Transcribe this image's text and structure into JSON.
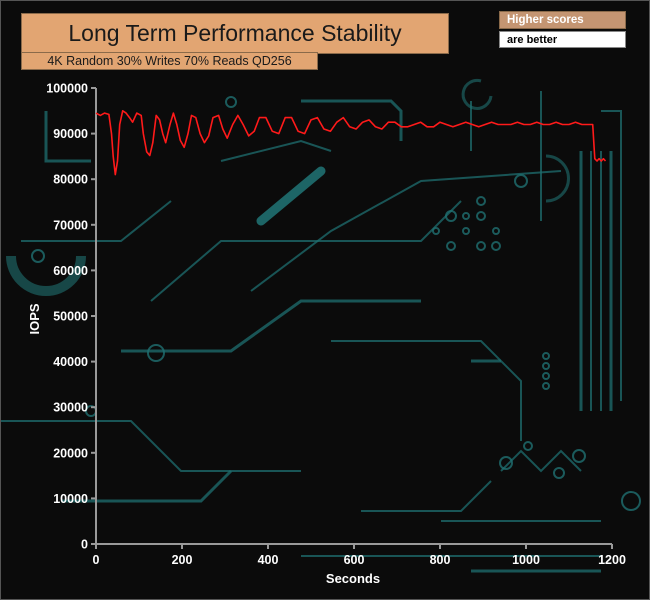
{
  "header": {
    "title": "Long Term Performance Stability",
    "subtitle": "4K Random 30% Writes 70% Reads QD256",
    "note_top": "Higher scores",
    "note_bottom": "are better"
  },
  "colors": {
    "background": "#0b0b0b",
    "series": "#ff1a1a",
    "title_box": "#e2a572",
    "note_box": "#c49572",
    "decor": "#1f6f70"
  },
  "chart_data": {
    "type": "line",
    "title": "Long Term Performance Stability",
    "subtitle": "4K Random 30% Writes 70% Reads QD256",
    "xlabel": "Seconds",
    "ylabel": "IOPS",
    "xlim": [
      0,
      1200
    ],
    "ylim": [
      0,
      100000
    ],
    "x_ticks": [
      "0",
      "200",
      "400",
      "600",
      "800",
      "1000",
      "1200"
    ],
    "y_ticks": [
      "0",
      "10000",
      "20000",
      "30000",
      "40000",
      "50000",
      "60000",
      "70000",
      "80000",
      "90000",
      "100000"
    ],
    "grid": false,
    "legend": "none",
    "series": [
      {
        "color": "#ff1a1a",
        "points": [
          [
            0,
            94500
          ],
          [
            10,
            94000
          ],
          [
            20,
            94500
          ],
          [
            30,
            94200
          ],
          [
            36,
            90000
          ],
          [
            40,
            85000
          ],
          [
            45,
            81000
          ],
          [
            50,
            84000
          ],
          [
            55,
            92000
          ],
          [
            62,
            95000
          ],
          [
            70,
            94500
          ],
          [
            78,
            93500
          ],
          [
            85,
            92500
          ],
          [
            95,
            94500
          ],
          [
            105,
            94000
          ],
          [
            110,
            90000
          ],
          [
            118,
            86000
          ],
          [
            125,
            85200
          ],
          [
            132,
            88000
          ],
          [
            140,
            94000
          ],
          [
            148,
            93000
          ],
          [
            155,
            90000
          ],
          [
            162,
            88000
          ],
          [
            172,
            92000
          ],
          [
            180,
            94500
          ],
          [
            188,
            92000
          ],
          [
            196,
            88500
          ],
          [
            205,
            87000
          ],
          [
            214,
            90000
          ],
          [
            222,
            94000
          ],
          [
            232,
            93500
          ],
          [
            242,
            90000
          ],
          [
            252,
            88000
          ],
          [
            262,
            89500
          ],
          [
            272,
            93500
          ],
          [
            285,
            94000
          ],
          [
            295,
            91000
          ],
          [
            305,
            89000
          ],
          [
            318,
            92000
          ],
          [
            330,
            94000
          ],
          [
            342,
            92000
          ],
          [
            355,
            89500
          ],
          [
            368,
            90500
          ],
          [
            380,
            93500
          ],
          [
            395,
            93500
          ],
          [
            410,
            90500
          ],
          [
            425,
            90000
          ],
          [
            440,
            93500
          ],
          [
            455,
            93500
          ],
          [
            470,
            90500
          ],
          [
            485,
            90000
          ],
          [
            500,
            93000
          ],
          [
            515,
            93500
          ],
          [
            530,
            91000
          ],
          [
            545,
            90500
          ],
          [
            560,
            92500
          ],
          [
            575,
            93500
          ],
          [
            590,
            91500
          ],
          [
            605,
            91000
          ],
          [
            620,
            92500
          ],
          [
            635,
            93000
          ],
          [
            650,
            91500
          ],
          [
            665,
            91000
          ],
          [
            680,
            92500
          ],
          [
            695,
            92500
          ],
          [
            710,
            91500
          ],
          [
            725,
            91500
          ],
          [
            740,
            92000
          ],
          [
            755,
            92500
          ],
          [
            770,
            91500
          ],
          [
            785,
            91500
          ],
          [
            800,
            92500
          ],
          [
            815,
            92000
          ],
          [
            830,
            91500
          ],
          [
            845,
            92000
          ],
          [
            860,
            92500
          ],
          [
            875,
            92000
          ],
          [
            890,
            91500
          ],
          [
            905,
            92000
          ],
          [
            920,
            92500
          ],
          [
            935,
            92000
          ],
          [
            950,
            92000
          ],
          [
            965,
            92000
          ],
          [
            980,
            92500
          ],
          [
            995,
            92000
          ],
          [
            1010,
            92000
          ],
          [
            1025,
            92500
          ],
          [
            1040,
            92000
          ],
          [
            1055,
            92000
          ],
          [
            1070,
            92500
          ],
          [
            1085,
            92000
          ],
          [
            1100,
            92000
          ],
          [
            1115,
            92500
          ],
          [
            1130,
            92000
          ],
          [
            1145,
            92000
          ],
          [
            1155,
            92000
          ],
          [
            1160,
            84500
          ],
          [
            1165,
            84000
          ],
          [
            1170,
            84500
          ],
          [
            1175,
            84000
          ],
          [
            1180,
            84500
          ],
          [
            1185,
            84000
          ]
        ]
      }
    ]
  }
}
